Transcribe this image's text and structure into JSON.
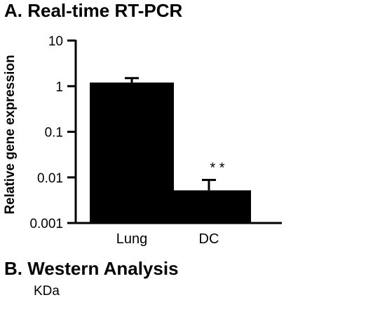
{
  "panel_a": {
    "title": "A. Real-time RT-PCR"
  },
  "panel_b": {
    "title": "B. Western Analysis",
    "unit_label": "KDa"
  },
  "chart_data": {
    "type": "bar",
    "title": "A. Real-time RT-PCR",
    "xlabel": "",
    "ylabel": "Relative gene expression",
    "yscale": "log",
    "ylim": [
      0.001,
      10
    ],
    "yticks": [
      10,
      1,
      0.1,
      0.01,
      0.001
    ],
    "ytick_labels": [
      "10",
      "1",
      "0.1",
      "0.01",
      "0.001"
    ],
    "categories": [
      "Lung",
      "DC"
    ],
    "values": [
      1.2,
      0.0052
    ],
    "error_upper": [
      1.5,
      0.0088
    ],
    "annotations": [
      {
        "category": "DC",
        "text": "* *"
      }
    ],
    "grid": false,
    "colors": {
      "bar": "#000000",
      "axis": "#000000"
    }
  }
}
